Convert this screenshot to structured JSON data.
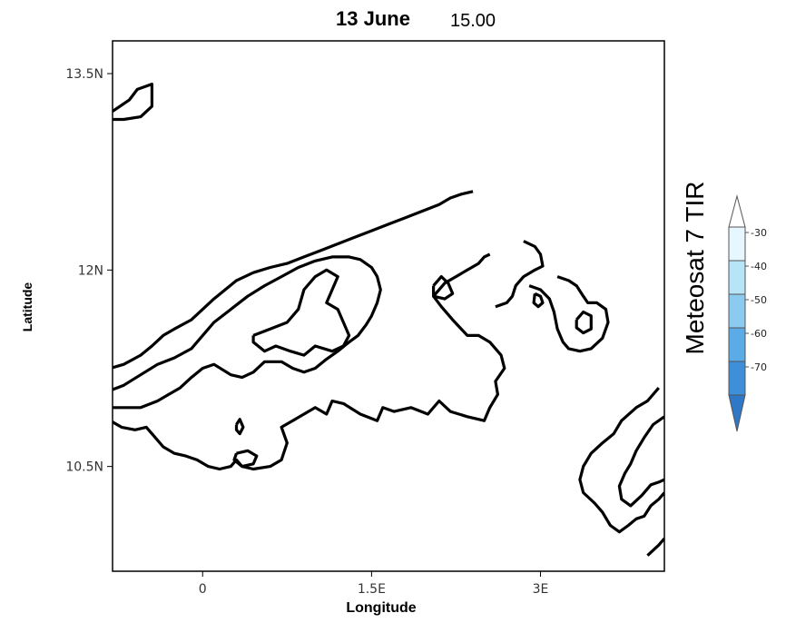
{
  "chart_data": {
    "type": "contour",
    "title": "13 June",
    "subtitle": "15.00",
    "xlabel": "Longitude",
    "ylabel": "Latitude",
    "xlim": [
      -0.8,
      4.1
    ],
    "ylim": [
      9.7,
      13.75
    ],
    "x_ticks": [
      {
        "value": 0,
        "label": "0"
      },
      {
        "value": 1.5,
        "label": "1.5E"
      },
      {
        "value": 3,
        "label": "3E"
      }
    ],
    "y_ticks": [
      {
        "value": 10.5,
        "label": "10.5N"
      },
      {
        "value": 12,
        "label": "12N"
      },
      {
        "value": 13.5,
        "label": "13.5N"
      }
    ],
    "colorbar": {
      "title": "Meteosat 7 TIR",
      "levels": [
        "-30",
        "-40",
        "-50",
        "-60",
        "-70"
      ],
      "colors": [
        "#ffffff",
        "#e6f7ff",
        "#b8e4f7",
        "#8ccbf0",
        "#5aabe6",
        "#3d8fd9",
        "#2e78c7"
      ]
    },
    "contours": [
      {
        "name": "nw-blob",
        "points": [
          [
            -0.82,
            13.2
          ],
          [
            -0.65,
            13.3
          ],
          [
            -0.58,
            13.38
          ],
          [
            -0.45,
            13.42
          ],
          [
            -0.45,
            13.25
          ],
          [
            -0.55,
            13.17
          ],
          [
            -0.7,
            13.15
          ],
          [
            -0.82,
            13.15
          ]
        ]
      },
      {
        "name": "outer-west",
        "points": [
          [
            -0.82,
            10.85
          ],
          [
            -0.72,
            10.8
          ],
          [
            -0.6,
            10.78
          ],
          [
            -0.5,
            10.8
          ],
          [
            -0.45,
            10.75
          ],
          [
            -0.35,
            10.65
          ],
          [
            -0.25,
            10.6
          ],
          [
            -0.15,
            10.58
          ],
          [
            -0.05,
            10.55
          ],
          [
            0.05,
            10.5
          ],
          [
            0.15,
            10.48
          ],
          [
            0.25,
            10.5
          ],
          [
            0.3,
            10.55
          ],
          [
            0.35,
            10.5
          ],
          [
            0.45,
            10.48
          ],
          [
            0.6,
            10.5
          ],
          [
            0.7,
            10.55
          ],
          [
            0.75,
            10.68
          ],
          [
            0.7,
            10.8
          ],
          [
            0.8,
            10.85
          ],
          [
            0.9,
            10.9
          ],
          [
            1.0,
            10.95
          ],
          [
            1.1,
            10.9
          ],
          [
            1.15,
            11.0
          ],
          [
            1.25,
            10.98
          ],
          [
            1.4,
            10.9
          ],
          [
            1.55,
            10.85
          ],
          [
            1.6,
            10.95
          ],
          [
            1.7,
            10.92
          ],
          [
            1.85,
            10.95
          ],
          [
            2.0,
            10.9
          ],
          [
            2.1,
            11.0
          ],
          [
            2.2,
            10.92
          ],
          [
            2.35,
            10.88
          ],
          [
            2.5,
            10.85
          ],
          [
            2.55,
            10.95
          ],
          [
            2.62,
            11.05
          ],
          [
            2.6,
            11.15
          ],
          [
            2.68,
            11.25
          ],
          [
            2.65,
            11.35
          ],
          [
            2.55,
            11.45
          ],
          [
            2.45,
            11.5
          ],
          [
            2.35,
            11.5
          ],
          [
            2.22,
            11.62
          ],
          [
            2.12,
            11.72
          ],
          [
            2.05,
            11.8
          ],
          [
            2.15,
            11.9
          ],
          [
            2.25,
            11.95
          ],
          [
            2.35,
            12.0
          ],
          [
            2.45,
            12.05
          ],
          [
            2.5,
            12.1
          ],
          [
            2.55,
            12.12
          ]
        ]
      },
      {
        "name": "outer-north",
        "points": [
          [
            -0.82,
            11.25
          ],
          [
            -0.7,
            11.28
          ],
          [
            -0.55,
            11.35
          ],
          [
            -0.45,
            11.42
          ],
          [
            -0.35,
            11.5
          ],
          [
            -0.25,
            11.55
          ],
          [
            -0.1,
            11.62
          ],
          [
            0.0,
            11.7
          ],
          [
            0.1,
            11.78
          ],
          [
            0.2,
            11.85
          ],
          [
            0.3,
            11.92
          ],
          [
            0.45,
            11.98
          ],
          [
            0.6,
            12.02
          ],
          [
            0.75,
            12.05
          ],
          [
            0.9,
            12.1
          ],
          [
            1.05,
            12.15
          ],
          [
            1.2,
            12.2
          ],
          [
            1.35,
            12.25
          ],
          [
            1.5,
            12.3
          ],
          [
            1.65,
            12.35
          ],
          [
            1.8,
            12.4
          ],
          [
            1.95,
            12.45
          ],
          [
            2.1,
            12.5
          ],
          [
            2.2,
            12.55
          ],
          [
            2.3,
            12.58
          ],
          [
            2.4,
            12.6
          ]
        ]
      },
      {
        "name": "inner-band",
        "points": [
          [
            -0.82,
            11.08
          ],
          [
            -0.7,
            11.12
          ],
          [
            -0.55,
            11.2
          ],
          [
            -0.4,
            11.28
          ],
          [
            -0.25,
            11.33
          ],
          [
            -0.1,
            11.4
          ],
          [
            0.0,
            11.5
          ],
          [
            0.1,
            11.6
          ],
          [
            0.25,
            11.7
          ],
          [
            0.4,
            11.8
          ],
          [
            0.55,
            11.88
          ],
          [
            0.7,
            11.95
          ],
          [
            0.85,
            12.02
          ],
          [
            1.0,
            12.07
          ],
          [
            1.15,
            12.1
          ],
          [
            1.3,
            12.1
          ],
          [
            1.4,
            12.08
          ],
          [
            1.5,
            12.02
          ],
          [
            1.55,
            11.95
          ],
          [
            1.58,
            11.85
          ],
          [
            1.55,
            11.75
          ],
          [
            1.5,
            11.65
          ],
          [
            1.45,
            11.58
          ],
          [
            1.38,
            11.5
          ],
          [
            1.3,
            11.45
          ],
          [
            1.2,
            11.38
          ],
          [
            1.1,
            11.32
          ],
          [
            1.0,
            11.25
          ],
          [
            0.9,
            11.22
          ],
          [
            0.8,
            11.25
          ],
          [
            0.7,
            11.3
          ],
          [
            0.55,
            11.3
          ],
          [
            0.45,
            11.22
          ],
          [
            0.35,
            11.18
          ],
          [
            0.25,
            11.2
          ],
          [
            0.1,
            11.28
          ],
          [
            0.0,
            11.25
          ],
          [
            -0.1,
            11.18
          ],
          [
            -0.2,
            11.1
          ],
          [
            -0.3,
            11.05
          ],
          [
            -0.4,
            11.0
          ],
          [
            -0.55,
            10.95
          ],
          [
            -0.7,
            10.95
          ],
          [
            -0.82,
            10.95
          ]
        ]
      },
      {
        "name": "inner-loop",
        "points": [
          [
            0.45,
            11.5
          ],
          [
            0.6,
            11.55
          ],
          [
            0.75,
            11.6
          ],
          [
            0.85,
            11.7
          ],
          [
            0.9,
            11.85
          ],
          [
            1.0,
            11.95
          ],
          [
            1.1,
            12.0
          ],
          [
            1.2,
            11.95
          ],
          [
            1.15,
            11.85
          ],
          [
            1.1,
            11.75
          ],
          [
            1.2,
            11.7
          ],
          [
            1.25,
            11.6
          ],
          [
            1.3,
            11.5
          ],
          [
            1.25,
            11.42
          ],
          [
            1.15,
            11.38
          ],
          [
            1.0,
            11.42
          ],
          [
            0.9,
            11.35
          ],
          [
            0.78,
            11.38
          ],
          [
            0.65,
            11.42
          ],
          [
            0.55,
            11.38
          ],
          [
            0.45,
            11.45
          ],
          [
            0.45,
            11.5
          ]
        ]
      },
      {
        "name": "small-loop-a",
        "points": [
          [
            0.3,
            10.6
          ],
          [
            0.4,
            10.62
          ],
          [
            0.48,
            10.58
          ],
          [
            0.45,
            10.52
          ],
          [
            0.35,
            10.5
          ],
          [
            0.28,
            10.55
          ],
          [
            0.3,
            10.6
          ]
        ]
      },
      {
        "name": "small-loop-b",
        "points": [
          [
            0.3,
            10.82
          ],
          [
            0.33,
            10.86
          ],
          [
            0.36,
            10.8
          ],
          [
            0.33,
            10.75
          ],
          [
            0.3,
            10.78
          ],
          [
            0.3,
            10.82
          ]
        ]
      },
      {
        "name": "loop-center-east",
        "points": [
          [
            2.05,
            11.88
          ],
          [
            2.12,
            11.95
          ],
          [
            2.18,
            11.9
          ],
          [
            2.22,
            11.82
          ],
          [
            2.15,
            11.78
          ],
          [
            2.05,
            11.8
          ],
          [
            2.05,
            11.88
          ]
        ]
      },
      {
        "name": "east-arc-outer",
        "points": [
          [
            2.6,
            11.72
          ],
          [
            2.7,
            11.75
          ],
          [
            2.75,
            11.8
          ],
          [
            2.78,
            11.88
          ],
          [
            2.85,
            11.95
          ],
          [
            2.95,
            12.0
          ],
          [
            3.02,
            12.03
          ],
          [
            3.0,
            12.12
          ],
          [
            2.95,
            12.18
          ],
          [
            2.85,
            12.22
          ]
        ]
      },
      {
        "name": "east-arc-mid",
        "points": [
          [
            2.9,
            11.88
          ],
          [
            3.0,
            11.85
          ],
          [
            3.08,
            11.78
          ],
          [
            3.12,
            11.68
          ],
          [
            3.15,
            11.55
          ],
          [
            3.2,
            11.45
          ],
          [
            3.25,
            11.4
          ],
          [
            3.35,
            11.38
          ],
          [
            3.45,
            11.4
          ],
          [
            3.55,
            11.48
          ],
          [
            3.6,
            11.6
          ],
          [
            3.58,
            11.7
          ],
          [
            3.5,
            11.75
          ],
          [
            3.42,
            11.75
          ],
          [
            3.38,
            11.8
          ],
          [
            3.32,
            11.88
          ],
          [
            3.25,
            11.92
          ],
          [
            3.15,
            11.95
          ]
        ]
      },
      {
        "name": "east-small-loop",
        "points": [
          [
            2.95,
            11.82
          ],
          [
            3.0,
            11.8
          ],
          [
            3.02,
            11.75
          ],
          [
            2.98,
            11.72
          ],
          [
            2.94,
            11.75
          ],
          [
            2.95,
            11.82
          ]
        ]
      },
      {
        "name": "east-ring",
        "points": [
          [
            3.32,
            11.62
          ],
          [
            3.38,
            11.68
          ],
          [
            3.45,
            11.65
          ],
          [
            3.45,
            11.55
          ],
          [
            3.38,
            11.52
          ],
          [
            3.32,
            11.56
          ],
          [
            3.32,
            11.62
          ]
        ]
      },
      {
        "name": "se-outer",
        "points": [
          [
            4.05,
            11.1
          ],
          [
            3.95,
            11.0
          ],
          [
            3.85,
            10.95
          ],
          [
            3.72,
            10.85
          ],
          [
            3.65,
            10.75
          ],
          [
            3.55,
            10.68
          ],
          [
            3.45,
            10.6
          ],
          [
            3.38,
            10.5
          ],
          [
            3.35,
            10.4
          ],
          [
            3.38,
            10.3
          ],
          [
            3.48,
            10.22
          ],
          [
            3.55,
            10.15
          ],
          [
            3.62,
            10.05
          ],
          [
            3.7,
            10.0
          ],
          [
            3.78,
            10.05
          ],
          [
            3.85,
            10.1
          ],
          [
            3.92,
            10.12
          ],
          [
            3.98,
            10.2
          ],
          [
            4.05,
            10.25
          ],
          [
            4.1,
            10.3
          ]
        ]
      },
      {
        "name": "se-inner",
        "points": [
          [
            4.1,
            10.88
          ],
          [
            4.0,
            10.82
          ],
          [
            3.92,
            10.72
          ],
          [
            3.85,
            10.62
          ],
          [
            3.8,
            10.52
          ],
          [
            3.75,
            10.45
          ],
          [
            3.7,
            10.35
          ],
          [
            3.72,
            10.25
          ],
          [
            3.8,
            10.2
          ],
          [
            3.9,
            10.28
          ],
          [
            3.98,
            10.36
          ],
          [
            4.05,
            10.38
          ],
          [
            4.1,
            10.4
          ]
        ]
      },
      {
        "name": "se-bottom",
        "points": [
          [
            3.95,
            9.82
          ],
          [
            4.05,
            9.9
          ],
          [
            4.1,
            9.95
          ]
        ]
      }
    ]
  }
}
